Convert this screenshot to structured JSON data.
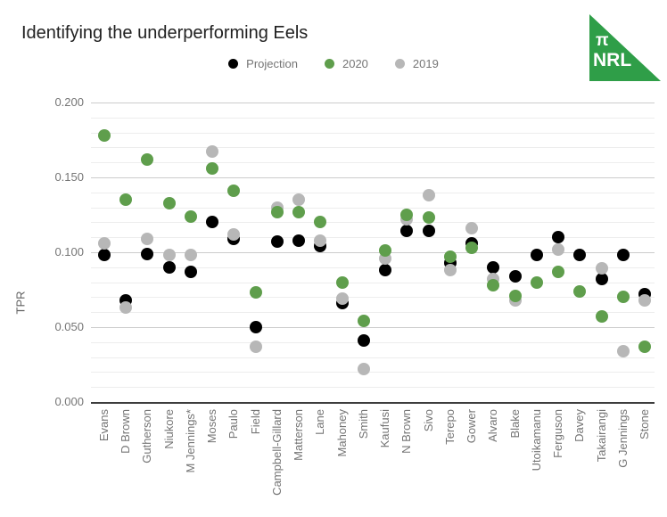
{
  "header": {
    "title": "Identifying the underperforming Eels"
  },
  "logo": {
    "pi": "π",
    "text": "NRL",
    "color": "#2f9e48"
  },
  "legend": [
    {
      "label": "Projection",
      "color": "#000000"
    },
    {
      "label": "2020",
      "color": "#5f9e4c"
    },
    {
      "label": "2019",
      "color": "#b7b7b7"
    }
  ],
  "chart_data": {
    "type": "scatter",
    "title": "Identifying the underperforming Eels",
    "xlabel": "",
    "ylabel": "TPR",
    "ylim": [
      0,
      0.2
    ],
    "ytick_labels": [
      "0.000",
      "0.050",
      "0.100",
      "0.150",
      "0.200"
    ],
    "ytick_values": [
      0,
      0.05,
      0.1,
      0.15,
      0.2
    ],
    "minor_grid_interval": 0.01,
    "grid": true,
    "legend_position": "top",
    "categories": [
      "Evans",
      "D Brown",
      "Gutherson",
      "Niukore",
      "M Jennings*",
      "Moses",
      "Paulo",
      "Field",
      "Campbell-Gillard",
      "Matterson",
      "Lane",
      "Mahoney",
      "Smith",
      "Kaufusi",
      "N Brown",
      "Sivo",
      "Terepo",
      "Gower",
      "Alvaro",
      "Blake",
      "Utoikamanu",
      "Ferguson",
      "Davey",
      "Takairangi",
      "G Jennings",
      "Stone"
    ],
    "series": [
      {
        "name": "Projection",
        "color": "#000000",
        "values": [
          0.098,
          0.068,
          0.099,
          0.09,
          0.087,
          0.12,
          0.109,
          0.05,
          0.107,
          0.108,
          0.104,
          0.066,
          0.041,
          0.088,
          0.114,
          0.114,
          0.093,
          0.106,
          0.09,
          0.084,
          0.098,
          0.11,
          0.098,
          0.082,
          0.098,
          0.072
        ]
      },
      {
        "name": "2020",
        "color": "#5f9e4c",
        "values": [
          0.178,
          0.135,
          0.162,
          0.133,
          0.124,
          0.156,
          0.141,
          0.073,
          0.127,
          0.127,
          0.12,
          0.08,
          0.054,
          0.101,
          0.125,
          0.123,
          0.097,
          0.103,
          0.078,
          0.071,
          0.08,
          0.087,
          0.074,
          0.057,
          0.07,
          0.037
        ]
      },
      {
        "name": "2019",
        "color": "#b7b7b7",
        "values": [
          0.106,
          0.063,
          0.109,
          0.098,
          0.098,
          0.167,
          0.112,
          0.037,
          0.13,
          0.135,
          0.108,
          0.069,
          0.022,
          0.096,
          0.122,
          0.138,
          0.088,
          0.116,
          0.082,
          0.068,
          null,
          0.102,
          null,
          0.089,
          0.034,
          0.068
        ]
      }
    ]
  }
}
